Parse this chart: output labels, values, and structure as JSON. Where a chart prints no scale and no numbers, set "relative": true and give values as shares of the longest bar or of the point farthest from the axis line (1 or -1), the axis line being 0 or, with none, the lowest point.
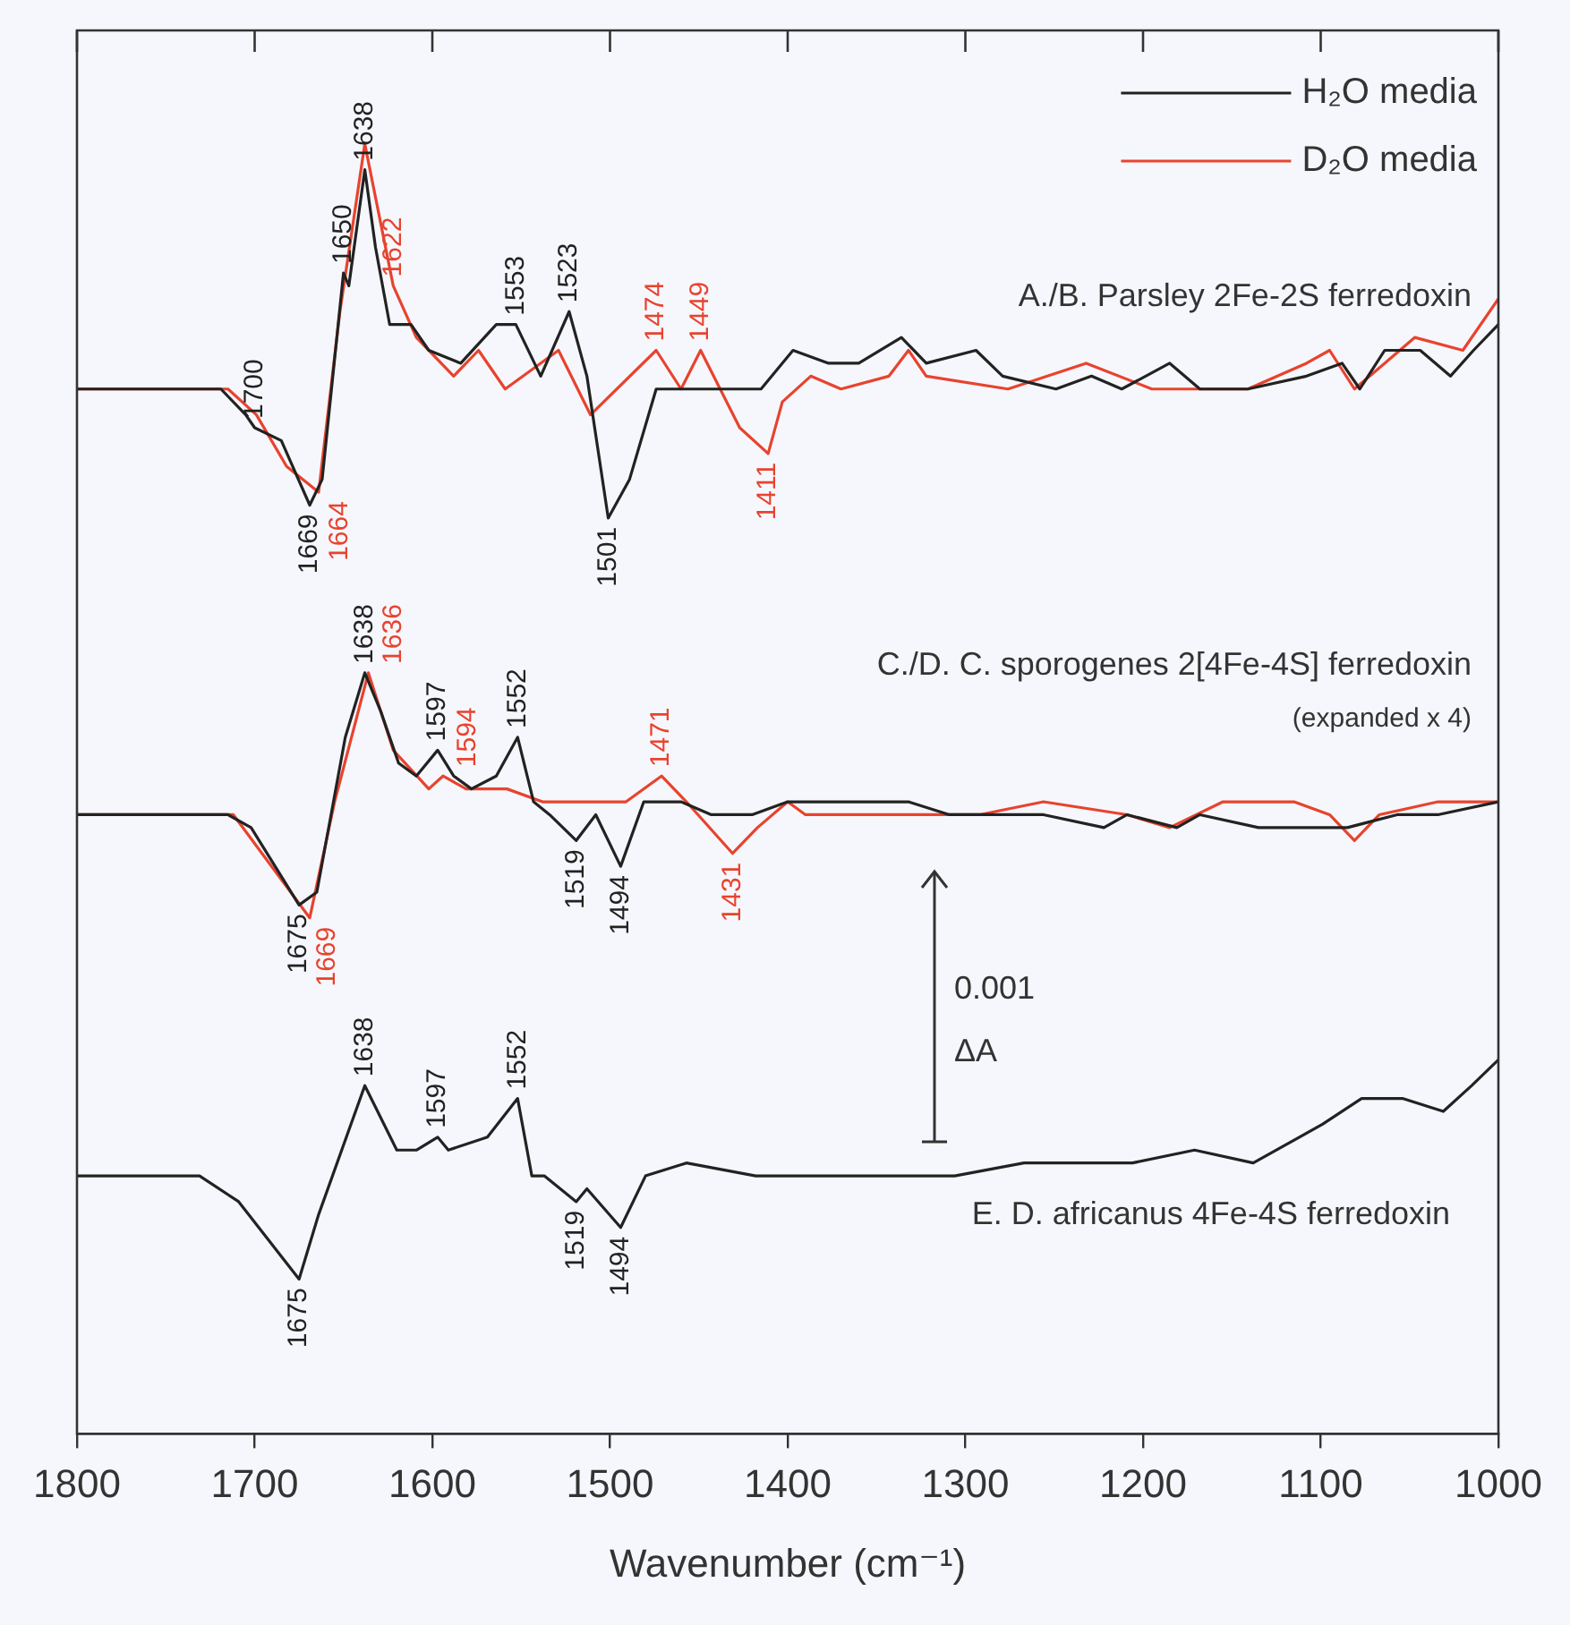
{
  "chart_data": {
    "type": "line",
    "relative": true,
    "xlabel": "Wavenumber (cm⁻¹)",
    "xlim": [
      1800,
      1000
    ],
    "xticks": [
      1800,
      1700,
      1600,
      1500,
      1400,
      1300,
      1200,
      1100,
      1000
    ],
    "grid": false,
    "legend": "top right",
    "marker": "none",
    "line_style": "solid",
    "series": [
      {
        "name": "H₂O media",
        "color": "#222222",
        "x": [
          1800,
          1719,
          1705,
          1700,
          1685,
          1669,
          1662,
          1650,
          1647,
          1638,
          1632,
          1624,
          1612,
          1602,
          1584,
          1564,
          1553,
          1539,
          1523,
          1513,
          1501,
          1489,
          1474,
          1462,
          1443,
          1427,
          1415,
          1397,
          1377,
          1360,
          1336,
          1322,
          1294,
          1279,
          1249,
          1229,
          1212,
          1185,
          1168,
          1141,
          1108,
          1088,
          1078,
          1064,
          1044,
          1027,
          1014,
          1000
        ],
        "values": [
          0.81,
          0.81,
          0.79,
          0.78,
          0.77,
          0.72,
          0.74,
          0.9,
          0.89,
          0.98,
          0.92,
          0.86,
          0.86,
          0.84,
          0.83,
          0.86,
          0.86,
          0.82,
          0.87,
          0.82,
          0.71,
          0.74,
          0.81,
          0.81,
          0.81,
          0.81,
          0.81,
          0.84,
          0.83,
          0.83,
          0.85,
          0.83,
          0.84,
          0.82,
          0.81,
          0.82,
          0.81,
          0.83,
          0.81,
          0.81,
          0.82,
          0.83,
          0.81,
          0.84,
          0.84,
          0.82,
          0.84,
          0.86
        ]
      },
      {
        "name": "D₂O media",
        "color": "#e8432e",
        "x": [
          1800,
          1715,
          1699,
          1682,
          1664,
          1652,
          1638,
          1622,
          1609,
          1588,
          1574,
          1559,
          1529,
          1511,
          1474,
          1460,
          1449,
          1427,
          1411,
          1403,
          1387,
          1370,
          1343,
          1332,
          1322,
          1276,
          1232,
          1195,
          1165,
          1141,
          1108,
          1095,
          1081,
          1064,
          1047,
          1020,
          1000
        ],
        "values": [
          0.81,
          0.81,
          0.79,
          0.75,
          0.73,
          0.87,
          1.0,
          0.89,
          0.85,
          0.82,
          0.84,
          0.81,
          0.84,
          0.79,
          0.84,
          0.81,
          0.84,
          0.78,
          0.76,
          0.8,
          0.82,
          0.81,
          0.82,
          0.84,
          0.82,
          0.81,
          0.83,
          0.81,
          0.81,
          0.81,
          0.83,
          0.84,
          0.81,
          0.83,
          0.85,
          0.84,
          0.88
        ]
      },
      {
        "color": "#222222",
        "x": [
          1800,
          1715,
          1702,
          1675,
          1665,
          1649,
          1638,
          1629,
          1619,
          1609,
          1597,
          1588,
          1578,
          1564,
          1552,
          1543,
          1534,
          1519,
          1508,
          1494,
          1481,
          1460,
          1443,
          1420,
          1400,
          1377,
          1332,
          1309,
          1276,
          1256,
          1222,
          1209,
          1181,
          1168,
          1135,
          1108,
          1085,
          1057,
          1034,
          1000
        ],
        "values": [
          0.48,
          0.48,
          0.47,
          0.41,
          0.42,
          0.54,
          0.59,
          0.56,
          0.52,
          0.51,
          0.53,
          0.51,
          0.5,
          0.51,
          0.54,
          0.49,
          0.48,
          0.46,
          0.48,
          0.44,
          0.49,
          0.49,
          0.48,
          0.48,
          0.49,
          0.49,
          0.49,
          0.48,
          0.48,
          0.48,
          0.47,
          0.48,
          0.47,
          0.48,
          0.47,
          0.47,
          0.47,
          0.48,
          0.48,
          0.49
        ]
      },
      {
        "color": "#e8432e",
        "x": [
          1800,
          1712,
          1669,
          1655,
          1636,
          1622,
          1602,
          1594,
          1581,
          1558,
          1538,
          1521,
          1491,
          1471,
          1457,
          1431,
          1417,
          1400,
          1390,
          1360,
          1326,
          1292,
          1256,
          1209,
          1185,
          1155,
          1115,
          1095,
          1081,
          1067,
          1034,
          1000
        ],
        "values": [
          0.48,
          0.48,
          0.4,
          0.49,
          0.59,
          0.53,
          0.5,
          0.51,
          0.5,
          0.5,
          0.49,
          0.49,
          0.49,
          0.51,
          0.49,
          0.45,
          0.47,
          0.49,
          0.48,
          0.48,
          0.48,
          0.48,
          0.49,
          0.48,
          0.47,
          0.49,
          0.49,
          0.48,
          0.46,
          0.48,
          0.49,
          0.49
        ]
      },
      {
        "color": "#222222",
        "x": [
          1800,
          1731,
          1709,
          1675,
          1664,
          1638,
          1620,
          1609,
          1597,
          1591,
          1569,
          1552,
          1544,
          1537,
          1519,
          1513,
          1494,
          1480,
          1457,
          1418,
          1351,
          1306,
          1267,
          1228,
          1206,
          1171,
          1138,
          1099,
          1077,
          1054,
          1031,
          1015,
          1000
        ],
        "values": [
          0.2,
          0.2,
          0.18,
          0.12,
          0.17,
          0.27,
          0.22,
          0.22,
          0.23,
          0.22,
          0.23,
          0.26,
          0.2,
          0.2,
          0.18,
          0.19,
          0.16,
          0.2,
          0.21,
          0.2,
          0.2,
          0.2,
          0.21,
          0.21,
          0.21,
          0.22,
          0.21,
          0.24,
          0.26,
          0.26,
          0.25,
          0.27,
          0.29
        ]
      }
    ],
    "annotations": [
      "A./B. Parsley 2Fe-2S ferredoxin",
      "C./D. C. sporogenes 2[4Fe-4S] ferredoxin",
      "(expanded x 4)",
      "E. D. africanus 4Fe-4S ferredoxin",
      "0.001",
      "ΔA",
      {
        "text": "1700",
        "x": 1700,
        "y": 0.78
      },
      {
        "text": "1669",
        "x": 1669,
        "y": 0.72
      },
      {
        "text": "1650",
        "x": 1650,
        "y": 0.9
      },
      {
        "text": "1638",
        "x": 1638,
        "y": 0.98
      },
      {
        "text": "1553",
        "x": 1553,
        "y": 0.86
      },
      {
        "text": "1523",
        "x": 1523,
        "y": 0.87
      },
      {
        "text": "1501",
        "x": 1501,
        "y": 0.71
      },
      {
        "text": "1664",
        "x": 1664,
        "y": 0.73
      },
      {
        "text": "1622",
        "x": 1622,
        "y": 0.89
      },
      {
        "text": "1474",
        "x": 1474,
        "y": 0.84
      },
      {
        "text": "1449",
        "x": 1449,
        "y": 0.84
      },
      {
        "text": "1411",
        "x": 1411,
        "y": 0.76
      },
      {
        "text": "1675",
        "x": 1675,
        "y": 0.41
      },
      {
        "text": "1638",
        "x": 1638,
        "y": 0.59
      },
      {
        "text": "1597",
        "x": 1597,
        "y": 0.53
      },
      {
        "text": "1552",
        "x": 1552,
        "y": 0.54
      },
      {
        "text": "1519",
        "x": 1519,
        "y": 0.46
      },
      {
        "text": "1494",
        "x": 1494,
        "y": 0.44
      },
      {
        "text": "1669",
        "x": 1669,
        "y": 0.4
      },
      {
        "text": "1636",
        "x": 1636,
        "y": 0.59
      },
      {
        "text": "1594",
        "x": 1594,
        "y": 0.51
      },
      {
        "text": "1471",
        "x": 1471,
        "y": 0.51
      },
      {
        "text": "1431",
        "x": 1431,
        "y": 0.45
      },
      {
        "text": "1675",
        "x": 1675,
        "y": 0.12
      },
      {
        "text": "1638",
        "x": 1638,
        "y": 0.27
      },
      {
        "text": "1597",
        "x": 1597,
        "y": 0.23
      },
      {
        "text": "1552",
        "x": 1552,
        "y": 0.26
      },
      {
        "text": "1519",
        "x": 1519,
        "y": 0.18
      },
      {
        "text": "1494",
        "x": 1494,
        "y": 0.16
      }
    ]
  }
}
